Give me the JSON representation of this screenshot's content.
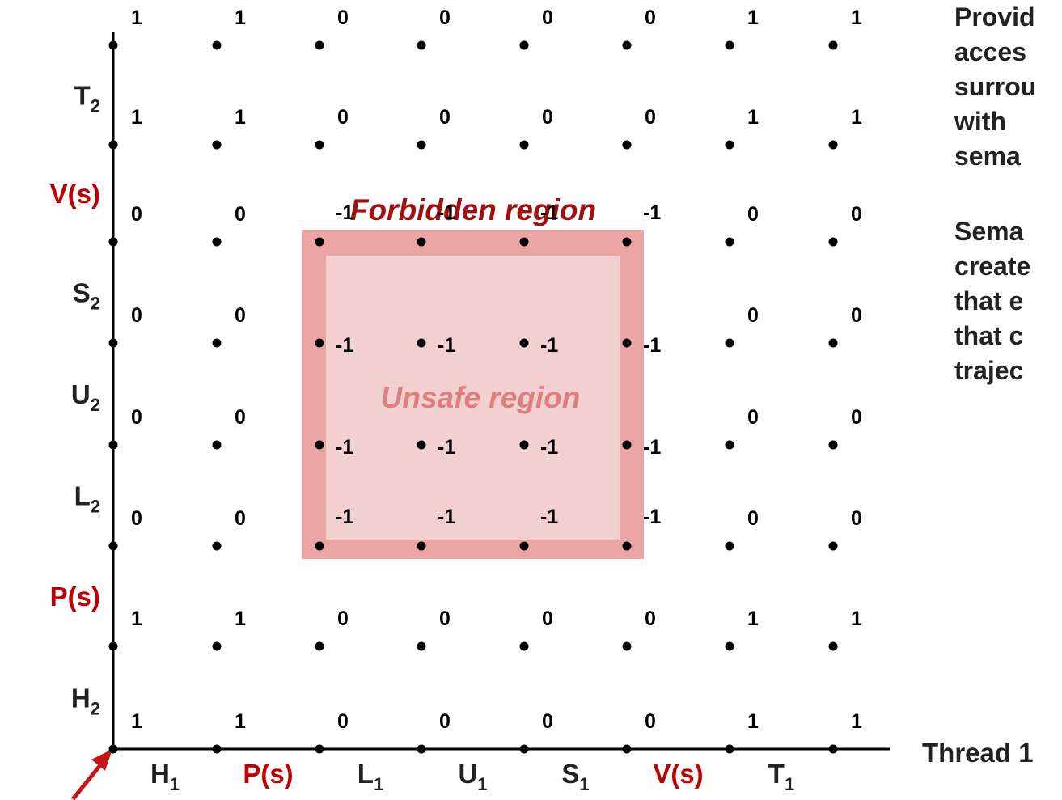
{
  "x_axis": {
    "label": "Thread 1",
    "ticks": [
      {
        "base": "H",
        "sub": "1",
        "red": false
      },
      {
        "base": "P(s)",
        "sub": "",
        "red": true
      },
      {
        "base": "L",
        "sub": "1",
        "red": false
      },
      {
        "base": "U",
        "sub": "1",
        "red": false
      },
      {
        "base": "S",
        "sub": "1",
        "red": false
      },
      {
        "base": "V(s)",
        "sub": "",
        "red": true
      },
      {
        "base": "T",
        "sub": "1",
        "red": false
      }
    ]
  },
  "y_axis": {
    "ticks": [
      {
        "base": "H",
        "sub": "2",
        "red": false
      },
      {
        "base": "P(s)",
        "sub": "",
        "red": true
      },
      {
        "base": "L",
        "sub": "2",
        "red": false
      },
      {
        "base": "U",
        "sub": "2",
        "red": false
      },
      {
        "base": "S",
        "sub": "2",
        "red": false
      },
      {
        "base": "V(s)",
        "sub": "",
        "red": true
      },
      {
        "base": "T",
        "sub": "2",
        "red": false
      }
    ]
  },
  "grid_values": [
    [
      "1",
      "1",
      "0",
      "0",
      "0",
      "0",
      "1",
      "1"
    ],
    [
      "1",
      "1",
      "0",
      "0",
      "0",
      "0",
      "1",
      "1"
    ],
    [
      "0",
      "0",
      "-1",
      "-1",
      "-1",
      "-1",
      "0",
      "0"
    ],
    [
      "0",
      "0",
      "-1",
      "-1",
      "-1",
      "-1",
      "0",
      "0"
    ],
    [
      "0",
      "0",
      "-1",
      "-1",
      "-1",
      "-1",
      "0",
      "0"
    ],
    [
      "0",
      "0",
      "-1",
      "-1",
      "-1",
      "-1",
      "0",
      "0"
    ],
    [
      "1",
      "1",
      "0",
      "0",
      "0",
      "0",
      "1",
      "1"
    ],
    [
      "1",
      "1",
      "0",
      "0",
      "0",
      "0",
      "1",
      "1"
    ]
  ],
  "regions": {
    "forbidden_label": "Forbidden region",
    "unsafe_label": "Unsafe region"
  },
  "side_text": {
    "paragraph1": [
      "Provid",
      "acces",
      "surrou",
      "with",
      "sema"
    ],
    "paragraph2": [
      "Sema",
      "create",
      "that e",
      "that c",
      "trajec"
    ]
  },
  "colors": {
    "forbidden": "#eba5a5",
    "unsafe": "#f3d0d0",
    "red_label": "#c00000",
    "region_text_dark": "#a01010",
    "region_text_light": "#de7f7f",
    "arrow": "#c01818",
    "ink": "#000000"
  }
}
